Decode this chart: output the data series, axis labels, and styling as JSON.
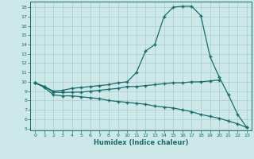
{
  "line1_x": [
    0,
    1,
    2,
    3,
    4,
    5,
    6,
    7,
    8,
    9,
    10,
    11,
    12,
    13,
    14,
    15,
    16,
    17,
    18,
    19,
    20,
    21,
    22,
    23
  ],
  "line1_y": [
    9.9,
    9.5,
    9.0,
    9.1,
    9.3,
    9.4,
    9.5,
    9.6,
    9.7,
    9.9,
    10.0,
    11.0,
    13.3,
    14.0,
    17.0,
    18.0,
    18.1,
    18.1,
    17.1,
    12.7,
    10.5,
    8.6,
    6.5,
    5.1
  ],
  "line2_x": [
    0,
    1,
    2,
    3,
    4,
    5,
    6,
    7,
    8,
    9,
    10,
    11,
    12,
    13,
    14,
    15,
    16,
    17,
    18,
    19,
    20
  ],
  "line2_y": [
    9.9,
    9.5,
    8.9,
    8.85,
    8.9,
    8.9,
    9.0,
    9.1,
    9.2,
    9.3,
    9.5,
    9.5,
    9.6,
    9.7,
    9.8,
    9.9,
    9.9,
    10.0,
    10.0,
    10.1,
    10.2
  ],
  "line3_x": [
    0,
    1,
    2,
    3,
    4,
    5,
    6,
    7,
    8,
    9,
    10,
    11,
    12,
    13,
    14,
    15,
    16,
    17,
    18,
    19,
    20,
    21,
    22,
    23
  ],
  "line3_y": [
    9.9,
    9.4,
    8.6,
    8.5,
    8.5,
    8.4,
    8.3,
    8.2,
    8.0,
    7.9,
    7.8,
    7.7,
    7.6,
    7.4,
    7.3,
    7.2,
    7.0,
    6.8,
    6.5,
    6.3,
    6.1,
    5.8,
    5.5,
    5.1
  ],
  "line_color": "#1a6b6b",
  "bg_color": "#cce8e8",
  "grid_color": "#aacccc",
  "xlabel": "Humidex (Indice chaleur)",
  "xlim": [
    -0.5,
    23.5
  ],
  "ylim": [
    4.8,
    18.6
  ],
  "yticks": [
    5,
    6,
    7,
    8,
    9,
    10,
    11,
    12,
    13,
    14,
    15,
    16,
    17,
    18
  ],
  "xticks": [
    0,
    1,
    2,
    3,
    4,
    5,
    6,
    7,
    8,
    9,
    10,
    11,
    12,
    13,
    14,
    15,
    16,
    17,
    18,
    19,
    20,
    21,
    22,
    23
  ],
  "marker": "+"
}
